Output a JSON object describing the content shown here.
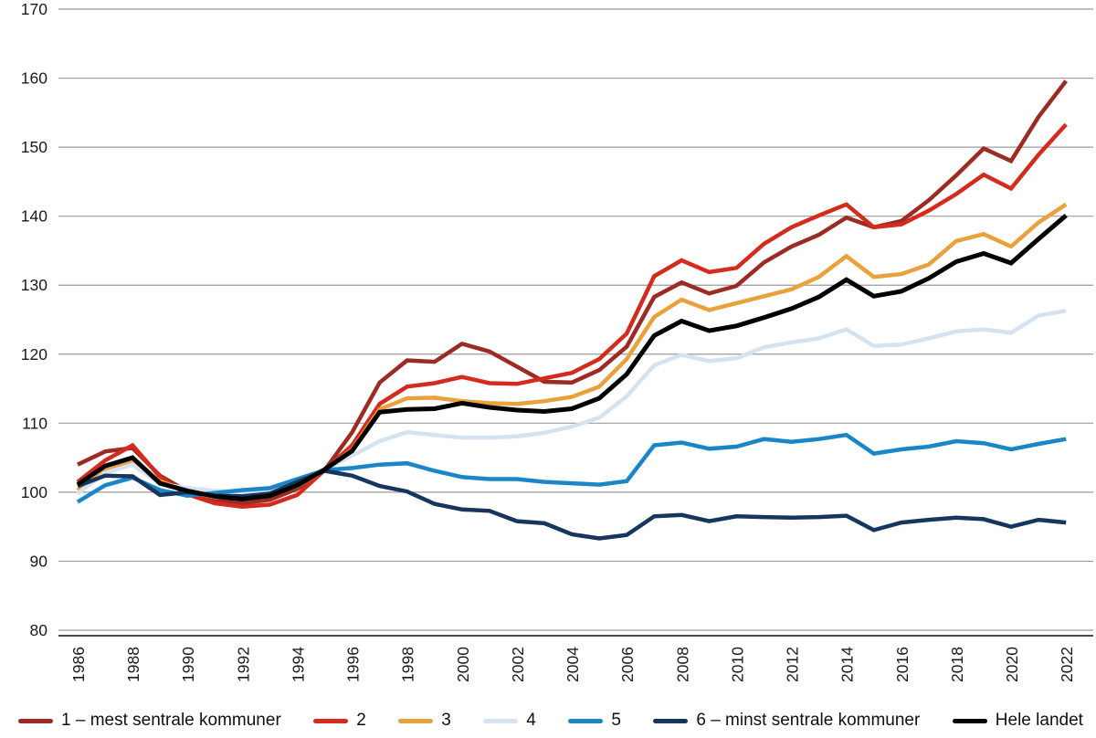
{
  "chart_data": {
    "type": "line",
    "title": "",
    "xlabel": "",
    "ylabel": "",
    "ylim": [
      80,
      170
    ],
    "yticks": [
      80,
      90,
      100,
      110,
      120,
      130,
      140,
      150,
      160,
      170
    ],
    "grid": true,
    "legend_position": "bottom",
    "x": [
      1986,
      1987,
      1988,
      1989,
      1990,
      1991,
      1992,
      1993,
      1994,
      1995,
      1996,
      1997,
      1998,
      1999,
      2000,
      2001,
      2002,
      2003,
      2004,
      2005,
      2006,
      2007,
      2008,
      2009,
      2010,
      2011,
      2012,
      2013,
      2014,
      2015,
      2016,
      2017,
      2018,
      2019,
      2020,
      2021,
      2022
    ],
    "x_tick_labels": [
      "1986",
      "1988",
      "1990",
      "1992",
      "1994",
      "1996",
      "1998",
      "2000",
      "2002",
      "2004",
      "2006",
      "2008",
      "2010",
      "2012",
      "2014",
      "2016",
      "2018",
      "2020",
      "2022"
    ],
    "axis_text_color": "#1a1a1a",
    "gridline_color": "#9b9b9b",
    "axis_line_color": "#4d4d4d",
    "series": [
      {
        "name": "1 – mest sentrale kommuner",
        "color": "#9b2b23",
        "values": [
          104.0,
          105.9,
          106.4,
          102.4,
          100.1,
          98.9,
          98.4,
          98.9,
          100.5,
          103.2,
          108.7,
          115.9,
          119.1,
          118.9,
          121.5,
          120.4,
          118.2,
          116.0,
          115.9,
          117.7,
          121.1,
          128.3,
          130.4,
          128.8,
          129.9,
          133.3,
          135.6,
          137.3,
          139.8,
          138.4,
          139.3,
          142.3,
          145.9,
          149.8,
          148.0,
          154.4,
          159.6
        ]
      },
      {
        "name": "2",
        "color": "#d32b1e",
        "values": [
          101.5,
          104.6,
          106.8,
          102.2,
          99.7,
          98.4,
          97.9,
          98.2,
          99.6,
          103.2,
          106.8,
          112.8,
          115.3,
          115.8,
          116.7,
          115.8,
          115.7,
          116.5,
          117.3,
          119.3,
          123.0,
          131.3,
          133.6,
          131.9,
          132.5,
          136.0,
          138.4,
          140.1,
          141.7,
          138.4,
          138.8,
          140.8,
          143.2,
          146.0,
          144.0,
          148.9,
          153.3
        ]
      },
      {
        "name": "3",
        "color": "#e9a13b",
        "values": [
          100.3,
          103.1,
          104.4,
          101.6,
          100.1,
          99.3,
          99.2,
          99.6,
          100.9,
          103.2,
          106.2,
          112.0,
          113.6,
          113.7,
          113.2,
          112.9,
          112.8,
          113.2,
          113.8,
          115.3,
          119.3,
          125.4,
          127.9,
          126.4,
          127.4,
          128.4,
          129.4,
          131.2,
          134.2,
          131.2,
          131.6,
          133.0,
          136.4,
          137.4,
          135.6,
          139.1,
          141.7
        ]
      },
      {
        "name": "4",
        "color": "#d5e3f0",
        "values": [
          99.8,
          102.8,
          104.0,
          101.2,
          100.6,
          100.2,
          99.9,
          100.3,
          101.5,
          103.3,
          105.3,
          107.4,
          108.7,
          108.3,
          107.9,
          107.9,
          108.1,
          108.6,
          109.5,
          110.8,
          113.9,
          118.4,
          119.9,
          119.0,
          119.4,
          121.0,
          121.7,
          122.3,
          123.6,
          121.2,
          121.4,
          122.3,
          123.3,
          123.6,
          123.1,
          125.6,
          126.3
        ]
      },
      {
        "name": "5",
        "color": "#1a86c8",
        "values": [
          98.6,
          101.0,
          102.1,
          100.3,
          99.5,
          99.9,
          100.3,
          100.6,
          101.9,
          103.2,
          103.5,
          104.0,
          104.2,
          103.1,
          102.2,
          101.9,
          101.9,
          101.5,
          101.3,
          101.1,
          101.6,
          106.8,
          107.2,
          106.3,
          106.6,
          107.7,
          107.3,
          107.7,
          108.3,
          105.6,
          106.2,
          106.6,
          107.4,
          107.1,
          106.2,
          107.0,
          107.7
        ]
      },
      {
        "name": "6 – minst sentrale kommuner",
        "color": "#17365f",
        "values": [
          100.9,
          102.4,
          102.3,
          99.6,
          100.0,
          99.5,
          99.4,
          99.8,
          101.5,
          103.1,
          102.4,
          100.9,
          100.1,
          98.3,
          97.5,
          97.3,
          95.8,
          95.5,
          93.9,
          93.3,
          93.8,
          96.5,
          96.7,
          95.8,
          96.5,
          96.4,
          96.3,
          96.4,
          96.6,
          94.5,
          95.6,
          96.0,
          96.3,
          96.1,
          95.0,
          96.0,
          95.6
        ]
      },
      {
        "name": "Hele landet",
        "color": "#000000",
        "values": [
          101.1,
          103.8,
          105.0,
          101.3,
          100.2,
          99.4,
          99.0,
          99.5,
          101.0,
          103.3,
          106.0,
          111.6,
          112.0,
          112.1,
          112.9,
          112.3,
          111.9,
          111.7,
          112.1,
          113.6,
          117.1,
          122.7,
          124.8,
          123.4,
          124.1,
          125.3,
          126.6,
          128.3,
          130.8,
          128.4,
          129.1,
          131.0,
          133.4,
          134.6,
          133.2,
          136.7,
          140.1
        ]
      }
    ]
  }
}
